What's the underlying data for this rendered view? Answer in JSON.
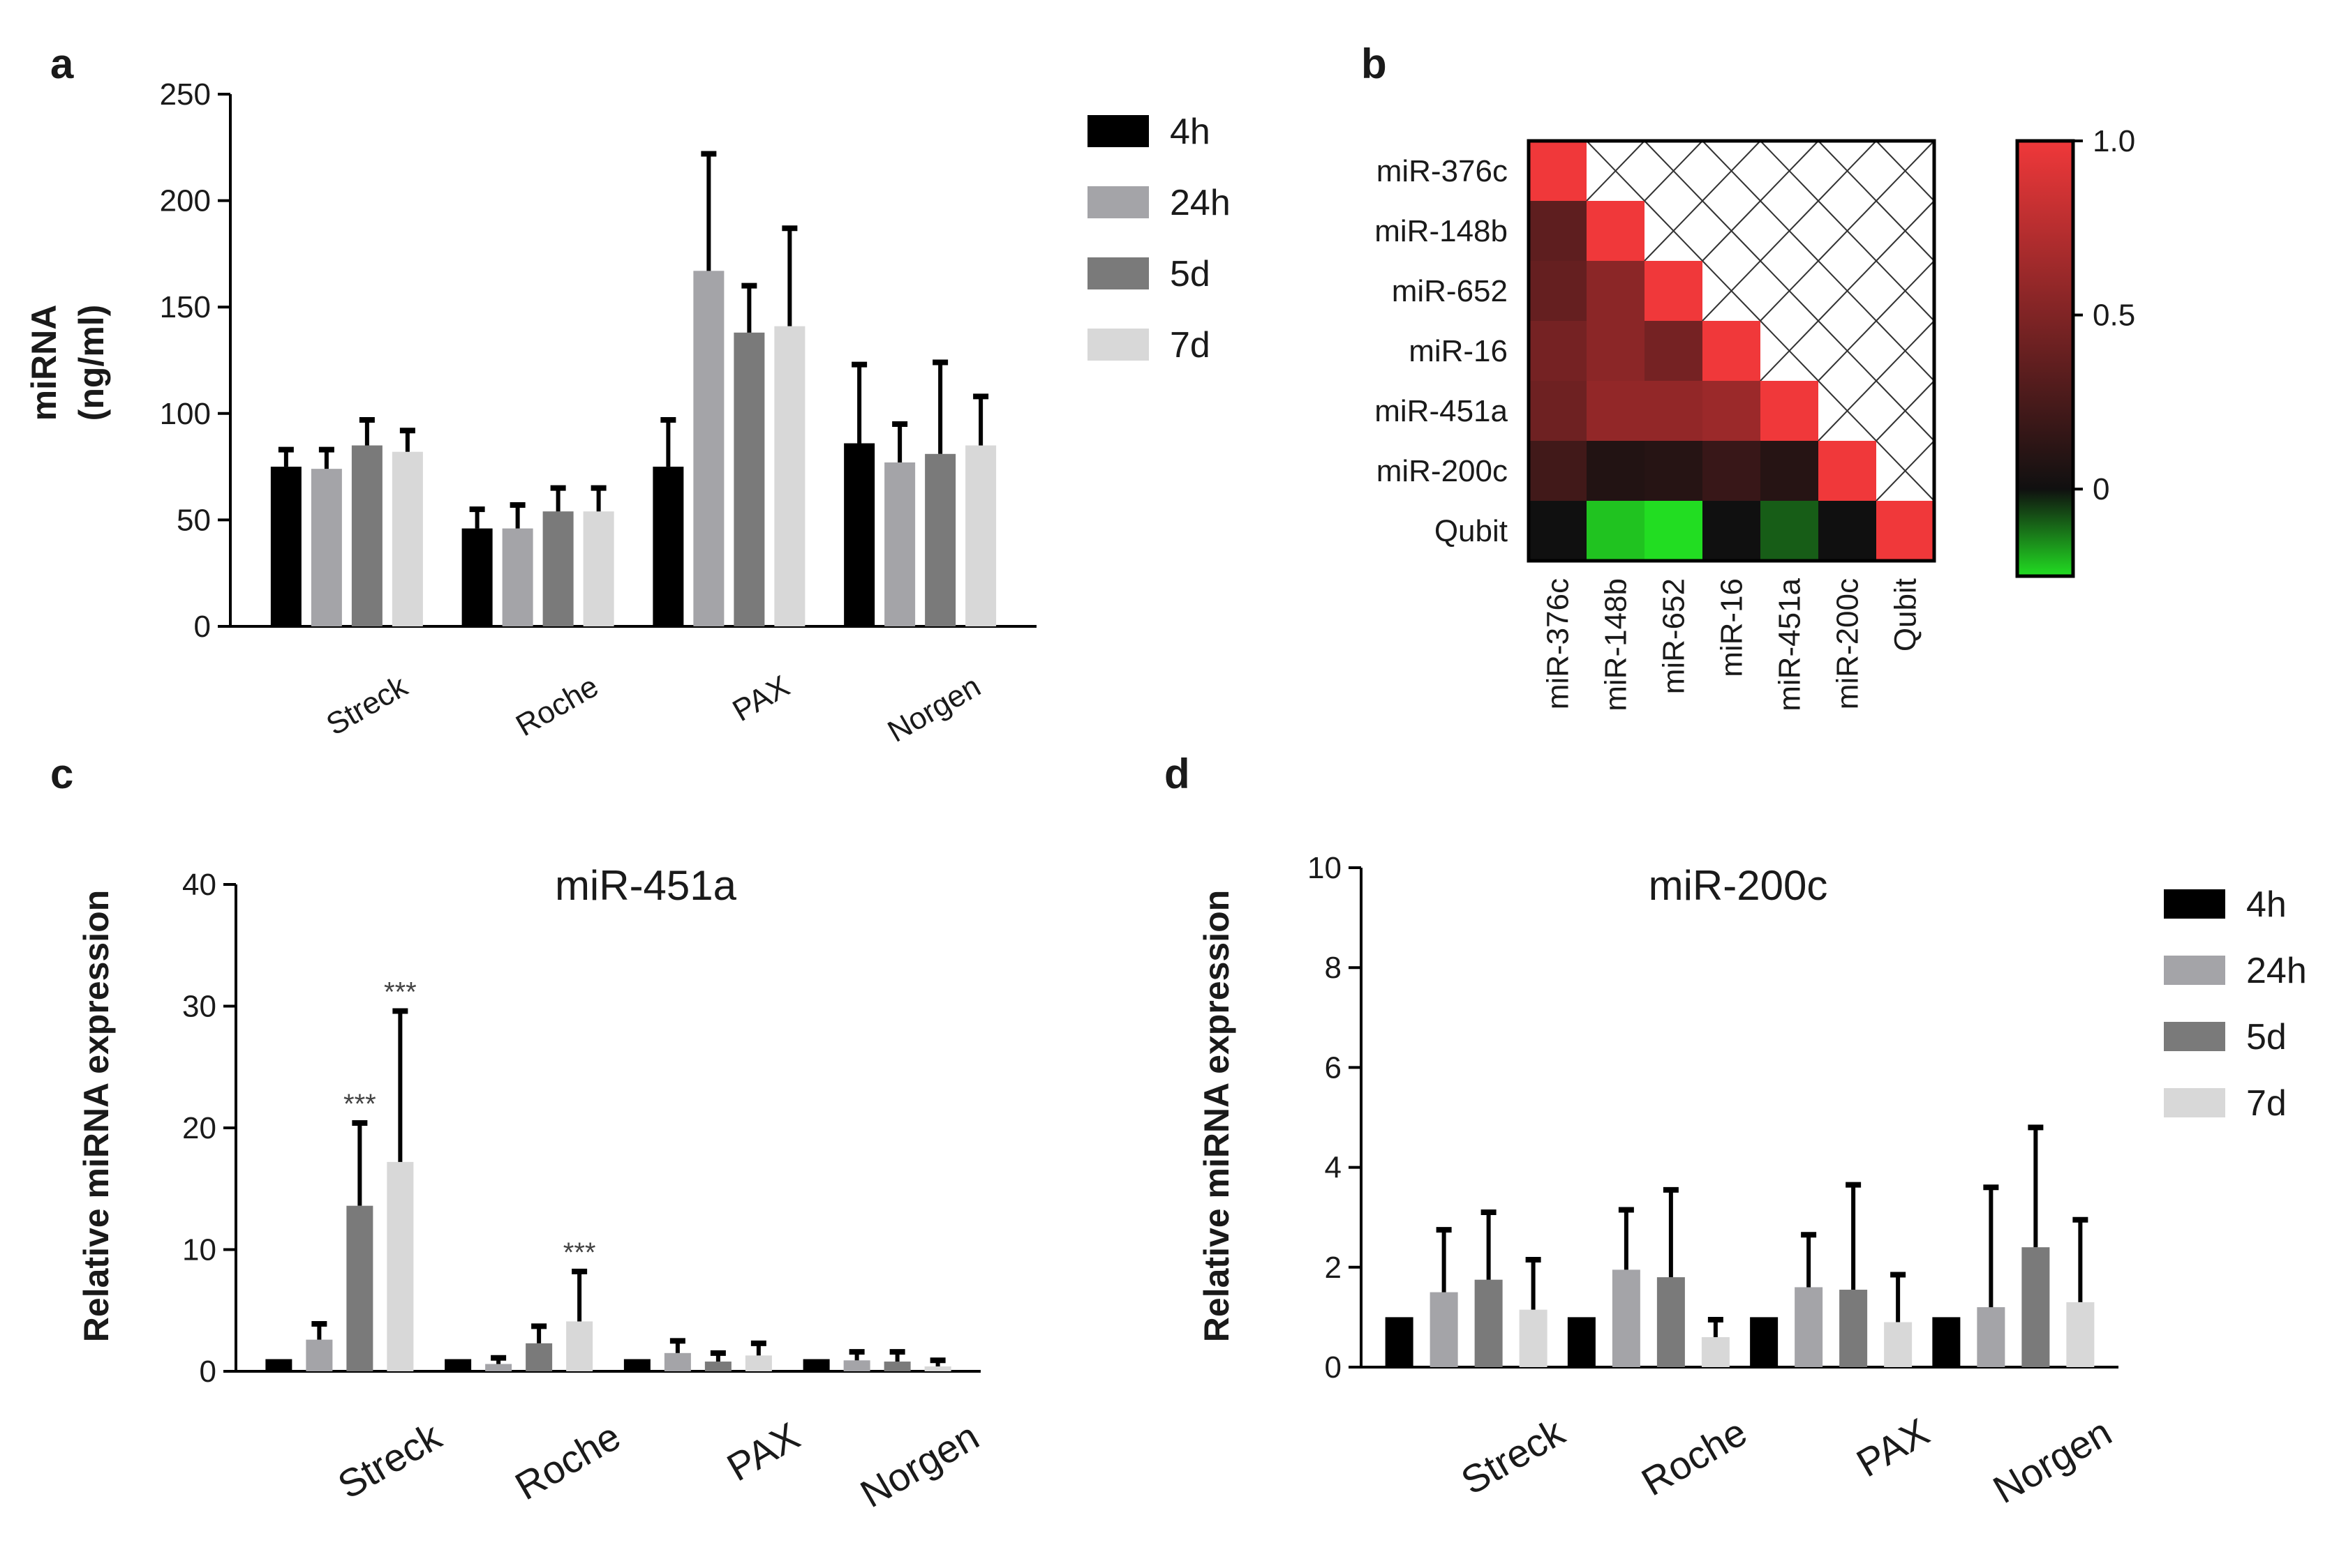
{
  "panels": {
    "a": "a",
    "b": "b",
    "c": "c",
    "d": "d"
  },
  "colors": {
    "4h": "#000000",
    "24h": "#a4a4a8",
    "5d": "#7a7a7a",
    "7d": "#d8d8d8",
    "heat_high": "#f0383a",
    "heat_mid": "#101010",
    "heat_low": "#22dd22"
  },
  "chart_data": [
    {
      "id": "a",
      "type": "bar",
      "title": "",
      "ylabel_line1": "miRNA",
      "ylabel_line2": "(ng/ml)",
      "xlabel": "",
      "ylim": [
        0,
        250
      ],
      "yticks": [
        "0",
        "50",
        "100",
        "150",
        "200",
        "250"
      ],
      "categories": [
        "Streck",
        "Roche",
        "PAX",
        "Norgen"
      ],
      "series": [
        {
          "name": "4h",
          "values": [
            75,
            46,
            75,
            86
          ],
          "errors": [
            8,
            9,
            22,
            37
          ]
        },
        {
          "name": "24h",
          "values": [
            74,
            46,
            167,
            77
          ],
          "errors": [
            9,
            11,
            55,
            18
          ]
        },
        {
          "name": "5d",
          "values": [
            85,
            54,
            138,
            81
          ],
          "errors": [
            12,
            11,
            22,
            43
          ]
        },
        {
          "name": "7d",
          "values": [
            82,
            54,
            141,
            85
          ],
          "errors": [
            10,
            11,
            46,
            23
          ]
        }
      ],
      "legend": [
        "4h",
        "24h",
        "5d",
        "7d"
      ]
    },
    {
      "id": "b",
      "type": "heatmap",
      "title": "",
      "rows": [
        "miR-376c",
        "miR-148b",
        "miR-652",
        "miR-16",
        "miR-451a",
        "miR-200c",
        "Qubit"
      ],
      "cols": [
        "miR-376c",
        "miR-148b",
        "miR-652",
        "miR-16",
        "miR-451a",
        "miR-200c",
        "Qubit"
      ],
      "values": [
        [
          1.0,
          null,
          null,
          null,
          null,
          null,
          null
        ],
        [
          0.35,
          1.0,
          null,
          null,
          null,
          null,
          null
        ],
        [
          0.38,
          0.55,
          1.0,
          null,
          null,
          null,
          null
        ],
        [
          0.45,
          0.55,
          0.45,
          1.0,
          null,
          null,
          null
        ],
        [
          0.42,
          0.58,
          0.58,
          0.62,
          1.0,
          null,
          null
        ],
        [
          0.22,
          0.08,
          0.1,
          0.18,
          0.1,
          1.0,
          null
        ],
        [
          0.0,
          -0.35,
          -0.4,
          0.0,
          -0.15,
          0.0,
          1.0
        ]
      ],
      "colorbar_ticks": [
        "1.0",
        "0.5",
        "0"
      ],
      "colorbar_range": [
        -0.25,
        1.0
      ]
    },
    {
      "id": "c",
      "type": "bar",
      "title": "miR-451a",
      "ylabel": "Relative miRNA expression",
      "xlabel": "",
      "ylim": [
        0,
        40
      ],
      "yticks": [
        "0",
        "10",
        "20",
        "30",
        "40"
      ],
      "categories": [
        "Streck",
        "Roche",
        "PAX",
        "Norgen"
      ],
      "series": [
        {
          "name": "4h",
          "values": [
            1.0,
            1.0,
            1.0,
            1.0
          ],
          "errors": [
            0,
            0,
            0,
            0
          ]
        },
        {
          "name": "24h",
          "values": [
            2.6,
            0.6,
            1.5,
            0.9
          ],
          "errors": [
            1.3,
            0.5,
            1.0,
            0.7
          ]
        },
        {
          "name": "5d",
          "values": [
            13.6,
            2.3,
            0.8,
            0.8
          ],
          "errors": [
            6.8,
            1.4,
            0.7,
            0.8
          ]
        },
        {
          "name": "7d",
          "values": [
            17.2,
            4.1,
            1.3,
            0.4
          ],
          "errors": [
            12.4,
            4.1,
            1.0,
            0.5
          ]
        }
      ],
      "annotations": [
        {
          "category": "Streck",
          "series": "5d",
          "text": "***"
        },
        {
          "category": "Streck",
          "series": "7d",
          "text": "***"
        },
        {
          "category": "Roche",
          "series": "7d",
          "text": "***"
        }
      ]
    },
    {
      "id": "d",
      "type": "bar",
      "title": "miR-200c",
      "ylabel": "Relative miRNA expression",
      "xlabel": "",
      "ylim": [
        0,
        10
      ],
      "yticks": [
        "0",
        "2",
        "4",
        "6",
        "8",
        "10"
      ],
      "categories": [
        "Streck",
        "Roche",
        "PAX",
        "Norgen"
      ],
      "series": [
        {
          "name": "4h",
          "values": [
            1.0,
            1.0,
            1.0,
            1.0
          ],
          "errors": [
            0,
            0,
            0,
            0
          ]
        },
        {
          "name": "24h",
          "values": [
            1.5,
            1.95,
            1.6,
            1.2
          ],
          "errors": [
            1.25,
            1.2,
            1.05,
            2.4
          ]
        },
        {
          "name": "5d",
          "values": [
            1.75,
            1.8,
            1.55,
            2.4
          ],
          "errors": [
            1.35,
            1.75,
            2.1,
            2.4
          ]
        },
        {
          "name": "7d",
          "values": [
            1.15,
            0.6,
            0.9,
            1.3
          ],
          "errors": [
            1.0,
            0.35,
            0.95,
            1.65
          ]
        }
      ],
      "legend": [
        "4h",
        "24h",
        "5d",
        "7d"
      ]
    }
  ]
}
